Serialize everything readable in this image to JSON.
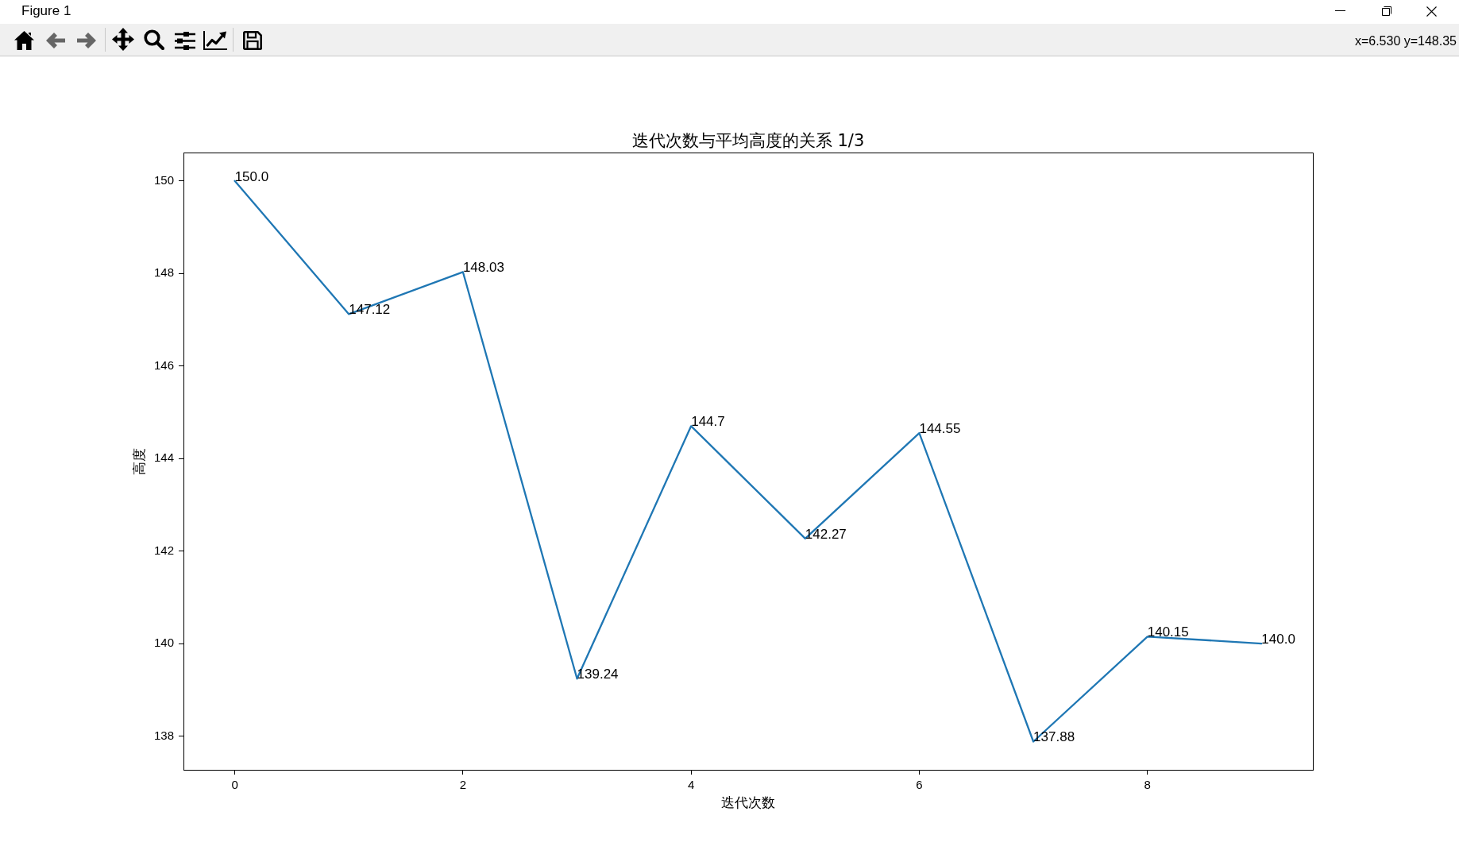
{
  "chart_data": {
    "type": "line",
    "title": "迭代次数与平均高度的关系 1/3",
    "xlabel": "迭代次数",
    "ylabel": "高度",
    "x": [
      0,
      1,
      2,
      3,
      4,
      5,
      6,
      7,
      8,
      9
    ],
    "values": [
      150.0,
      147.12,
      148.03,
      139.24,
      144.7,
      142.27,
      144.55,
      137.88,
      140.15,
      140.0
    ],
    "value_labels": [
      "150.0",
      "147.12",
      "148.03",
      "139.24",
      "144.7",
      "142.27",
      "144.55",
      "137.88",
      "140.15",
      "140.0"
    ],
    "color": "#1f77b4",
    "xlim": [
      -0.45,
      9.45
    ],
    "ylim": [
      137.27,
      150.61
    ],
    "xticks": [
      0,
      2,
      4,
      6,
      8
    ],
    "yticks": [
      138,
      140,
      142,
      144,
      146,
      148,
      150
    ],
    "annotations": [
      "Figure 1",
      "x=6.530 y=148.35"
    ]
  }
}
